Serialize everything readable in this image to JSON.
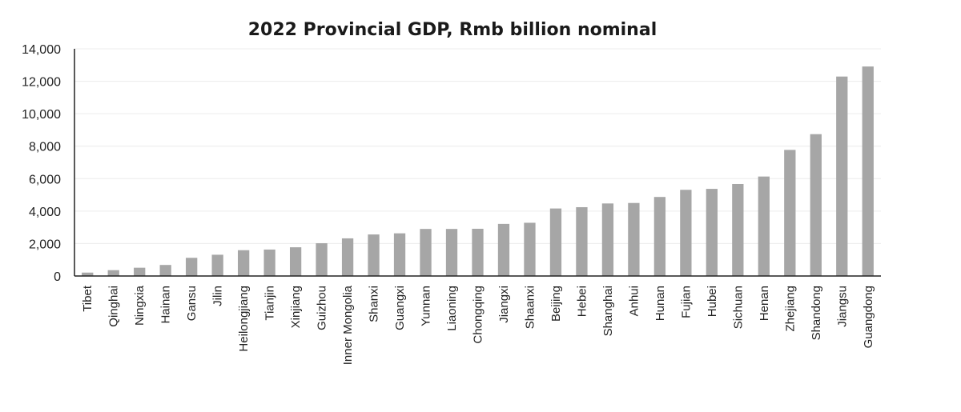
{
  "chart_data": {
    "type": "bar",
    "title": "2022 Provincial GDP, Rmb billion nominal",
    "xlabel": "",
    "ylabel": "",
    "ylim": [
      0,
      14000
    ],
    "yticks": [
      0,
      2000,
      4000,
      6000,
      8000,
      10000,
      12000,
      14000
    ],
    "ytick_labels": [
      "0",
      "2,000",
      "4,000",
      "6,000",
      "8,000",
      "10,000",
      "12,000",
      "14,000"
    ],
    "grid": true,
    "bar_color": "#a6a6a6",
    "categories": [
      "Tibet",
      "Qinghai",
      "Ningxia",
      "Hainan",
      "Gansu",
      "Jilin",
      "Heilongjiang",
      "Tianjin",
      "Xinjiang",
      "Guizhou",
      "Inner Mongolia",
      "Shanxi",
      "Guangxi",
      "Yunnan",
      "Liaoning",
      "Chongqing",
      "Jiangxi",
      "Shaanxi",
      "Beijing",
      "Hebei",
      "Shanghai",
      "Anhui",
      "Hunan",
      "Fujian",
      "Hubei",
      "Sichuan",
      "Henan",
      "Zhejiang",
      "Shandong",
      "Jiangsu",
      "Guangdong"
    ],
    "values": [
      210,
      360,
      510,
      680,
      1120,
      1310,
      1590,
      1630,
      1770,
      2020,
      2320,
      2560,
      2630,
      2900,
      2900,
      2910,
      3210,
      3280,
      4160,
      4240,
      4470,
      4500,
      4870,
      5310,
      5370,
      5670,
      6130,
      7770,
      8740,
      12290,
      12910
    ]
  }
}
